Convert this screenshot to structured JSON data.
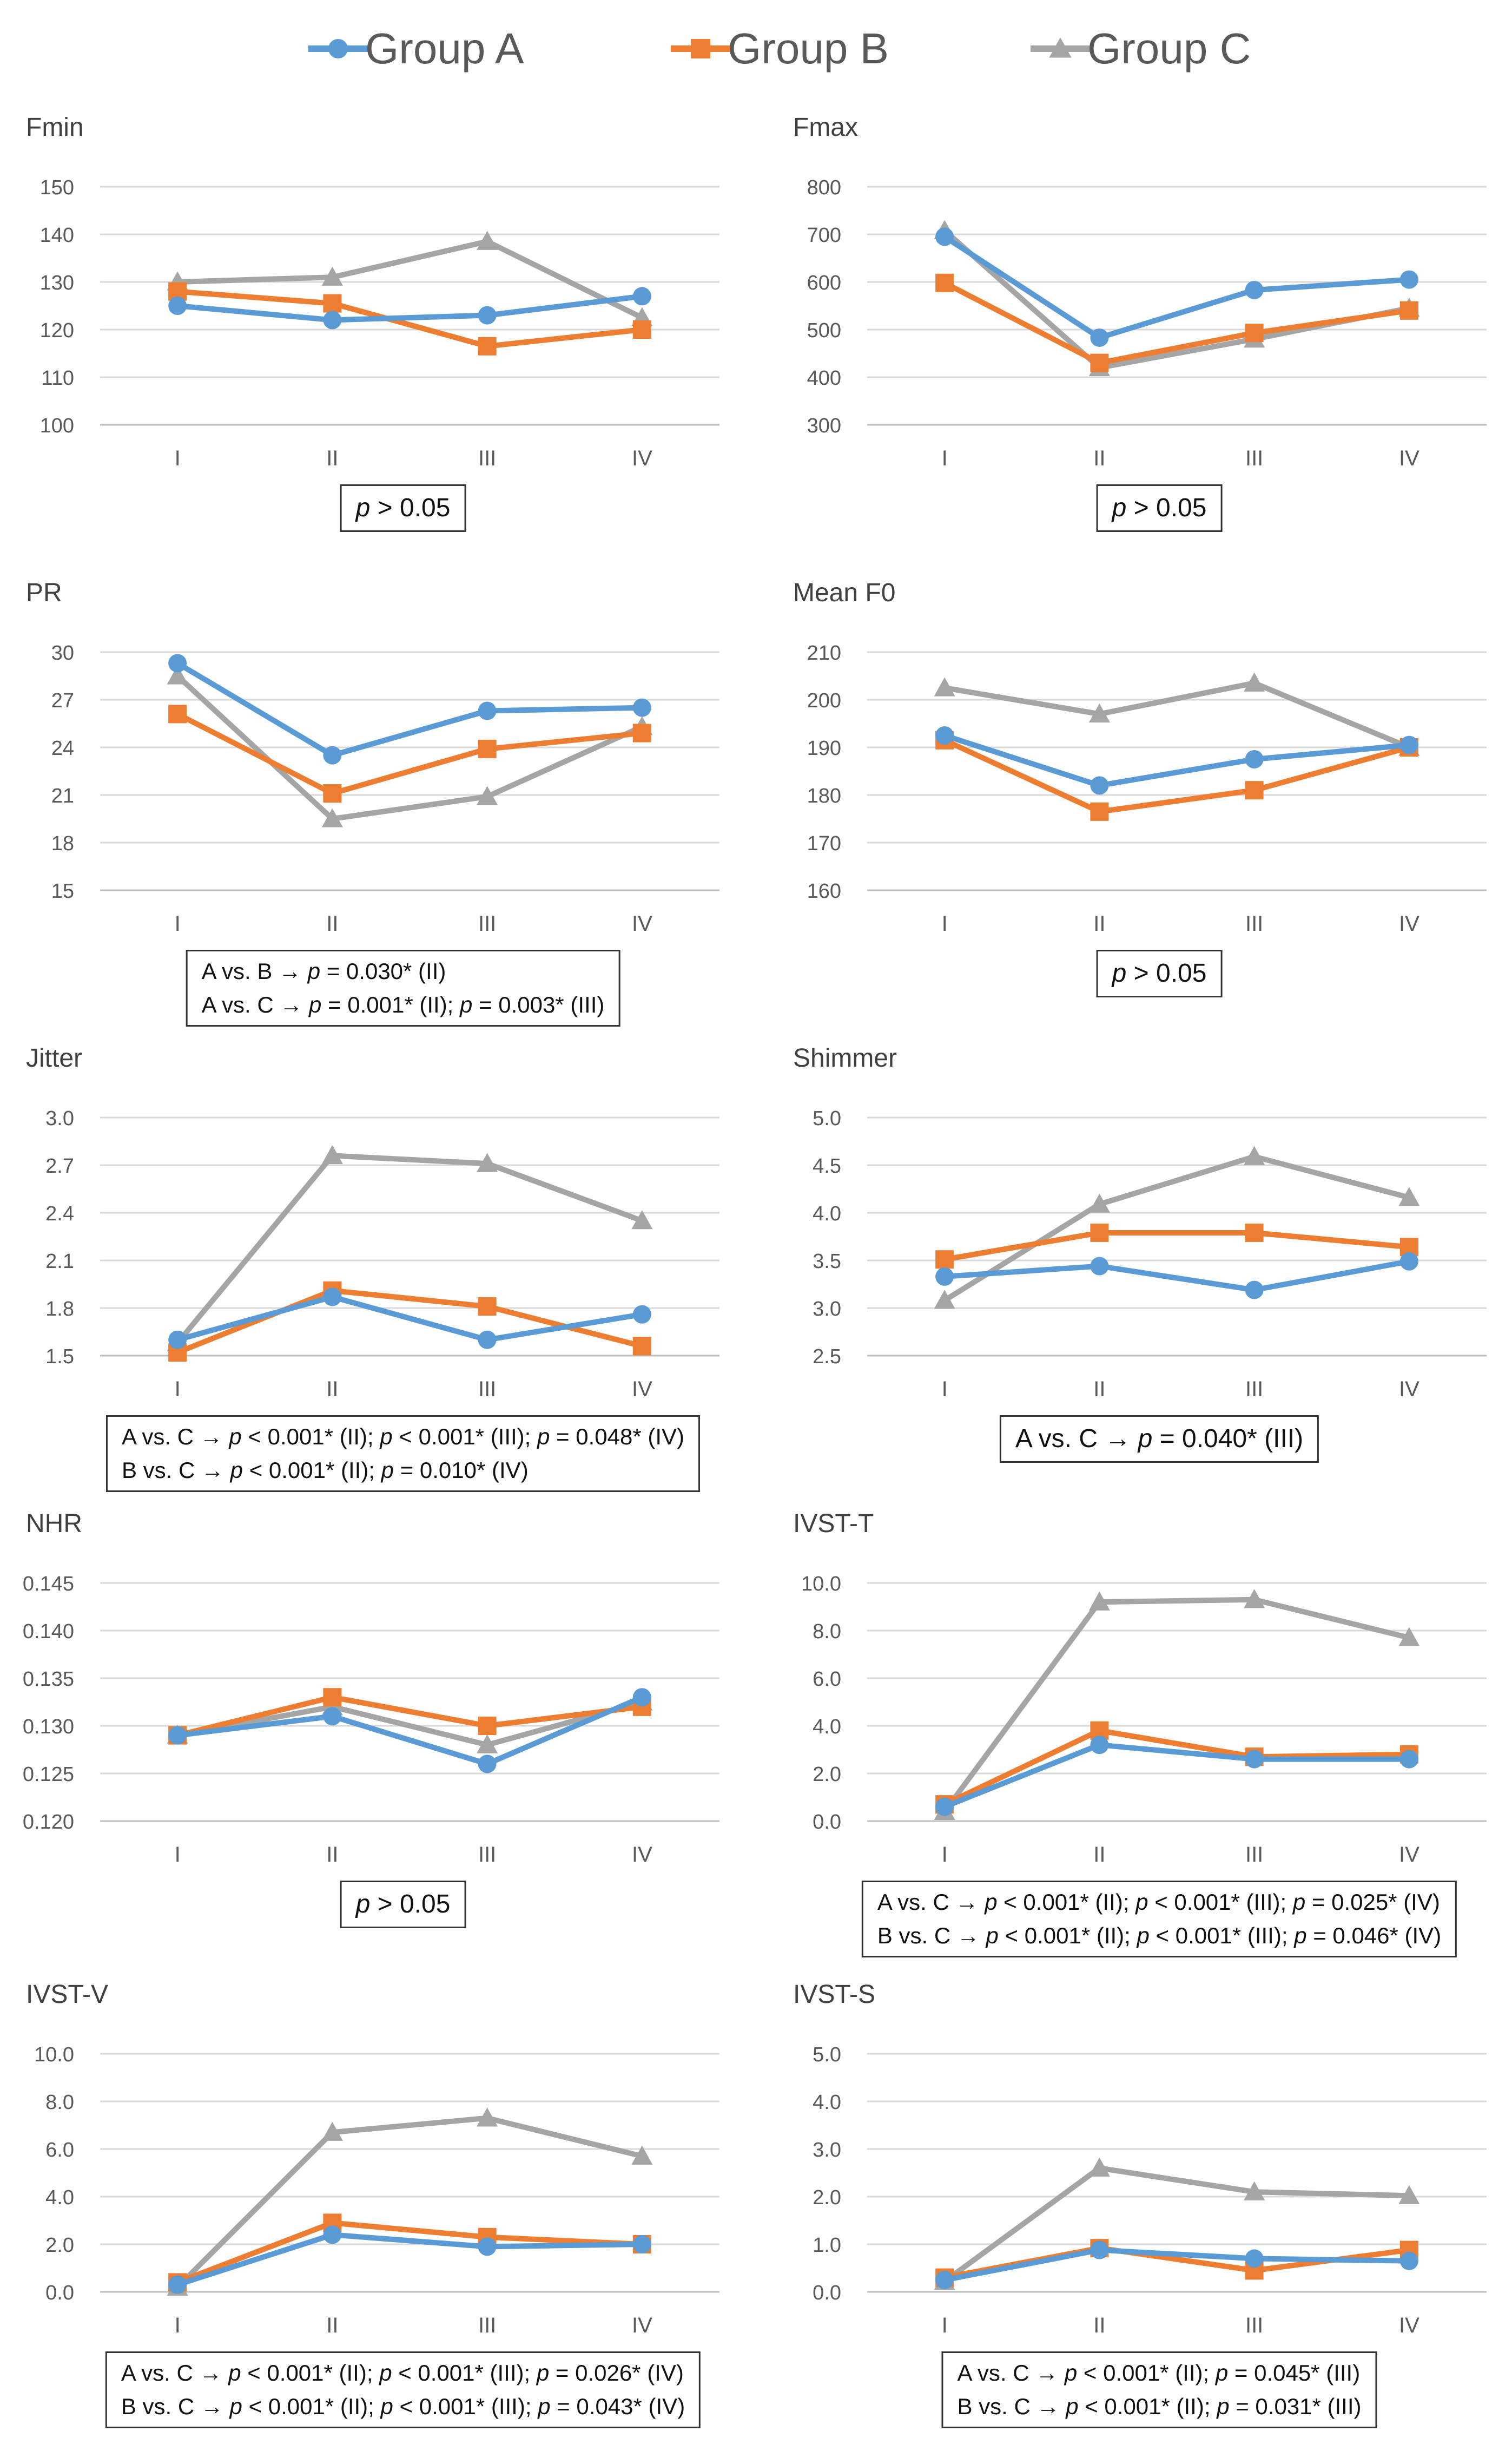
{
  "legend": [
    {
      "name": "Group A",
      "color": "#5B9BD5",
      "marker": "circle"
    },
    {
      "name": "Group B",
      "color": "#ED7D31",
      "marker": "square"
    },
    {
      "name": "Group C",
      "color": "#A5A5A5",
      "marker": "triangle"
    }
  ],
  "chart_data": [
    {
      "type": "line",
      "title": "Fmin",
      "categories": [
        "I",
        "II",
        "III",
        "IV"
      ],
      "ylim": [
        100,
        150
      ],
      "yticks": [
        "150",
        "140",
        "130",
        "120",
        "110",
        "100"
      ],
      "grid": true,
      "series": [
        {
          "name": "Group A",
          "values": [
            125,
            122,
            123,
            127
          ]
        },
        {
          "name": "Group B",
          "values": [
            128,
            125.5,
            116.5,
            120
          ]
        },
        {
          "name": "Group C",
          "values": [
            130,
            131,
            138.5,
            122.5
          ]
        }
      ],
      "stats": [
        "p > 0.05"
      ]
    },
    {
      "type": "line",
      "title": "Fmax",
      "categories": [
        "I",
        "II",
        "III",
        "IV"
      ],
      "ylim": [
        300,
        800
      ],
      "yticks": [
        "800",
        "700",
        "600",
        "500",
        "400",
        "300"
      ],
      "grid": true,
      "series": [
        {
          "name": "Group A",
          "values": [
            695,
            483,
            583,
            605
          ]
        },
        {
          "name": "Group B",
          "values": [
            598,
            430,
            493,
            540
          ]
        },
        {
          "name": "Group C",
          "values": [
            708,
            420,
            480,
            545
          ]
        }
      ],
      "stats": [
        "p > 0.05"
      ]
    },
    {
      "type": "line",
      "title": "PR",
      "categories": [
        "I",
        "II",
        "III",
        "IV"
      ],
      "ylim": [
        15,
        30
      ],
      "yticks": [
        "30",
        "27",
        "24",
        "21",
        "18",
        "15"
      ],
      "grid": true,
      "series": [
        {
          "name": "Group A",
          "values": [
            29.3,
            23.5,
            26.3,
            26.5
          ]
        },
        {
          "name": "Group B",
          "values": [
            26.1,
            21.1,
            23.9,
            24.9
          ]
        },
        {
          "name": "Group C",
          "values": [
            28.5,
            19.5,
            20.9,
            25.3
          ]
        }
      ],
      "stats": [
        "A vs. B → p = 0.030* (II)",
        "A vs. C → p = 0.001* (II); p = 0.003* (III)"
      ]
    },
    {
      "type": "line",
      "title": "Mean F0",
      "categories": [
        "I",
        "II",
        "III",
        "IV"
      ],
      "ylim": [
        160,
        210
      ],
      "yticks": [
        "210",
        "200",
        "190",
        "180",
        "170",
        "160"
      ],
      "grid": true,
      "series": [
        {
          "name": "Group A",
          "values": [
            192.5,
            182,
            187.5,
            190.5
          ]
        },
        {
          "name": "Group B",
          "values": [
            191.5,
            176.5,
            181,
            190
          ]
        },
        {
          "name": "Group C",
          "values": [
            202.5,
            197,
            203.5,
            190
          ]
        }
      ],
      "stats": [
        "p > 0.05"
      ]
    },
    {
      "type": "line",
      "title": "Jitter",
      "categories": [
        "I",
        "II",
        "III",
        "IV"
      ],
      "ylim": [
        1.5,
        3.0
      ],
      "yticks": [
        "3.0",
        "2.7",
        "2.4",
        "2.1",
        "1.8",
        "1.5"
      ],
      "grid": true,
      "series": [
        {
          "name": "Group A",
          "values": [
            1.6,
            1.87,
            1.6,
            1.76
          ]
        },
        {
          "name": "Group B",
          "values": [
            1.52,
            1.91,
            1.81,
            1.56
          ]
        },
        {
          "name": "Group C",
          "values": [
            1.58,
            2.76,
            2.71,
            2.35
          ]
        }
      ],
      "stats": [
        "A vs. C → p < 0.001* (II); p < 0.001* (III); p = 0.048* (IV)",
        "B vs. C → p < 0.001* (II); p = 0.010* (IV)"
      ]
    },
    {
      "type": "line",
      "title": "Shimmer",
      "categories": [
        "I",
        "II",
        "III",
        "IV"
      ],
      "ylim": [
        2.5,
        5.0
      ],
      "yticks": [
        "5.0",
        "4.5",
        "4.0",
        "3.5",
        "3.0",
        "2.5"
      ],
      "grid": true,
      "series": [
        {
          "name": "Group A",
          "values": [
            3.33,
            3.44,
            3.19,
            3.49
          ]
        },
        {
          "name": "Group B",
          "values": [
            3.51,
            3.79,
            3.79,
            3.64
          ]
        },
        {
          "name": "Group C",
          "values": [
            3.08,
            4.09,
            4.59,
            4.16
          ]
        }
      ],
      "stats": [
        "A vs. C → p = 0.040* (III)"
      ]
    },
    {
      "type": "line",
      "title": "NHR",
      "categories": [
        "I",
        "II",
        "III",
        "IV"
      ],
      "ylim": [
        0.12,
        0.145
      ],
      "yticks": [
        "0.145",
        "0.140",
        "0.135",
        "0.130",
        "0.125",
        "0.120"
      ],
      "grid": true,
      "series": [
        {
          "name": "Group A",
          "values": [
            0.129,
            0.131,
            0.126,
            0.133
          ]
        },
        {
          "name": "Group B",
          "values": [
            0.129,
            0.133,
            0.13,
            0.132
          ]
        },
        {
          "name": "Group C",
          "values": [
            0.129,
            0.132,
            0.128,
            0.1325
          ]
        }
      ],
      "stats": [
        "p > 0.05"
      ]
    },
    {
      "type": "line",
      "title": "IVST-T",
      "categories": [
        "I",
        "II",
        "III",
        "IV"
      ],
      "ylim": [
        0,
        10
      ],
      "yticks": [
        "10.0",
        "8.0",
        "6.0",
        "4.0",
        "2.0",
        "0.0"
      ],
      "grid": true,
      "series": [
        {
          "name": "Group A",
          "values": [
            0.6,
            3.2,
            2.6,
            2.6
          ]
        },
        {
          "name": "Group B",
          "values": [
            0.7,
            3.8,
            2.7,
            2.8
          ]
        },
        {
          "name": "Group C",
          "values": [
            0.4,
            9.2,
            9.3,
            7.7
          ]
        }
      ],
      "stats": [
        "A vs. C → p < 0.001* (II); p < 0.001* (III); p = 0.025* (IV)",
        "B vs. C → p < 0.001* (II); p < 0.001* (III); p = 0.046* (IV)"
      ]
    },
    {
      "type": "line",
      "title": "IVST-V",
      "categories": [
        "I",
        "II",
        "III",
        "IV"
      ],
      "ylim": [
        0,
        10
      ],
      "yticks": [
        "10.0",
        "8.0",
        "6.0",
        "4.0",
        "2.0",
        "0.0"
      ],
      "grid": true,
      "series": [
        {
          "name": "Group A",
          "values": [
            0.3,
            2.4,
            1.9,
            2.0
          ]
        },
        {
          "name": "Group B",
          "values": [
            0.4,
            2.9,
            2.3,
            2.0
          ]
        },
        {
          "name": "Group C",
          "values": [
            0.2,
            6.7,
            7.3,
            5.7
          ]
        }
      ],
      "stats": [
        "A vs. C → p < 0.001* (II); p < 0.001* (III); p = 0.026* (IV)",
        "B vs. C → p < 0.001* (II); p < 0.001* (III); p = 0.043* (IV)"
      ]
    },
    {
      "type": "line",
      "title": "IVST-S",
      "categories": [
        "I",
        "II",
        "III",
        "IV"
      ],
      "ylim": [
        0,
        5
      ],
      "yticks": [
        "5.0",
        "4.0",
        "3.0",
        "2.0",
        "1.0",
        "0.0"
      ],
      "grid": true,
      "series": [
        {
          "name": "Group A",
          "values": [
            0.25,
            0.88,
            0.7,
            0.65
          ]
        },
        {
          "name": "Group B",
          "values": [
            0.3,
            0.92,
            0.45,
            0.88
          ]
        },
        {
          "name": "Group C",
          "values": [
            0.22,
            2.6,
            2.1,
            2.02
          ]
        }
      ],
      "stats": [
        "A vs. C → p < 0.001* (II); p = 0.045* (III)",
        "B vs. C → p < 0.001* (II); p = 0.031* (III)"
      ]
    }
  ]
}
